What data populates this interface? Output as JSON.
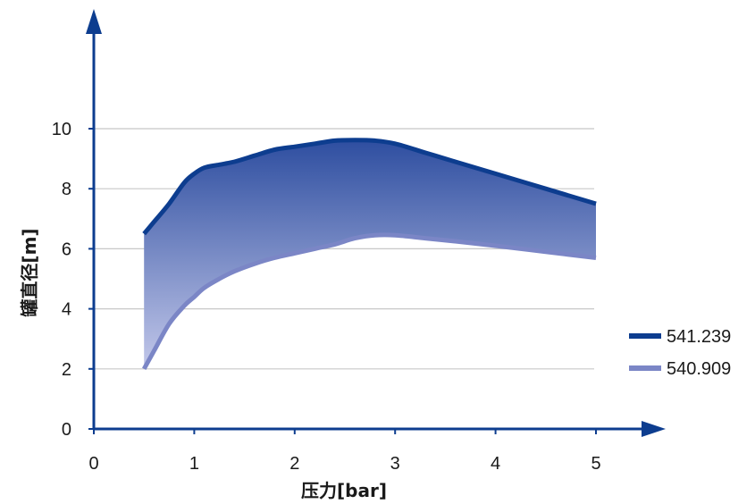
{
  "chart_data": {
    "type": "area",
    "title": "",
    "xlabel": "压力[bar]",
    "ylabel": "罐直径[m]",
    "xlim": [
      0,
      5.7
    ],
    "ylim": [
      0,
      13.8
    ],
    "xticks": [
      0,
      1,
      2,
      3,
      4,
      5
    ],
    "yticks": [
      0,
      2,
      4,
      6,
      8,
      10
    ],
    "xtick_labels": [
      "0",
      "1",
      "2",
      "3",
      "4",
      "5"
    ],
    "ytick_labels": [
      "0",
      "2",
      "4",
      "6",
      "8",
      "10"
    ],
    "grid": "horizontal",
    "legend_position": "right",
    "fill_between_series": true,
    "colors": {
      "upper": "#0d3d8f",
      "lower": "#7b86c6",
      "fill_top": "#2e4ea0",
      "fill_bottom": "#c3c8ea",
      "axis": "#0d3d8f",
      "grid": "#c8c8c8"
    },
    "series": [
      {
        "name": "541.239",
        "x": [
          0.5,
          0.6,
          0.75,
          0.9,
          1.0,
          1.1,
          1.25,
          1.4,
          1.6,
          1.8,
          2.0,
          2.2,
          2.4,
          2.6,
          2.8,
          3.0,
          3.3,
          3.6,
          4.0,
          4.5,
          5.0
        ],
        "y": [
          6.5,
          6.9,
          7.5,
          8.2,
          8.5,
          8.7,
          8.8,
          8.9,
          9.1,
          9.3,
          9.4,
          9.5,
          9.6,
          9.62,
          9.6,
          9.5,
          9.2,
          8.9,
          8.5,
          8.0,
          7.5
        ]
      },
      {
        "name": "540.909",
        "x": [
          0.5,
          0.6,
          0.75,
          0.9,
          1.0,
          1.1,
          1.25,
          1.4,
          1.6,
          1.8,
          2.0,
          2.2,
          2.4,
          2.6,
          2.8,
          3.0,
          3.3,
          3.6,
          4.0,
          4.5,
          5.0
        ],
        "y": [
          2.0,
          2.6,
          3.5,
          4.1,
          4.4,
          4.7,
          5.0,
          5.25,
          5.5,
          5.7,
          5.85,
          6.0,
          6.15,
          6.35,
          6.45,
          6.45,
          6.35,
          6.25,
          6.1,
          5.9,
          5.7
        ]
      }
    ]
  }
}
